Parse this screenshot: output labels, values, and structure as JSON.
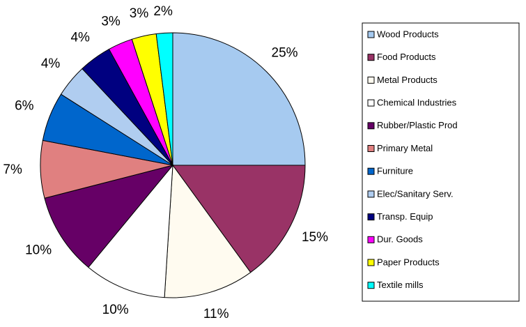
{
  "chart_data": {
    "type": "pie",
    "categories": [
      "Wood Products",
      "Food Products",
      "Metal Products",
      "Chemical Industries",
      "Rubber/Plastic Prod",
      "Primary Metal",
      "Furniture",
      "Elec/Sanitary Serv.",
      "Transp. Equip",
      "Dur. Goods",
      "Paper Products",
      "Textile mills"
    ],
    "values": [
      25,
      15,
      11,
      10,
      10,
      7,
      6,
      4,
      4,
      3,
      3,
      2
    ],
    "value_labels": [
      "25%",
      "15%",
      "11%",
      "10%",
      "10%",
      "7%",
      "6%",
      "4%",
      "4%",
      "3%",
      "3%",
      "2%"
    ],
    "colors": [
      "#a6caf0",
      "#993366",
      "#fffbf0",
      "#ffffff",
      "#660066",
      "#e08080",
      "#0066cc",
      "#b0cdf0",
      "#000080",
      "#ff00ff",
      "#ffff00",
      "#00ffff"
    ],
    "legend": "right"
  }
}
